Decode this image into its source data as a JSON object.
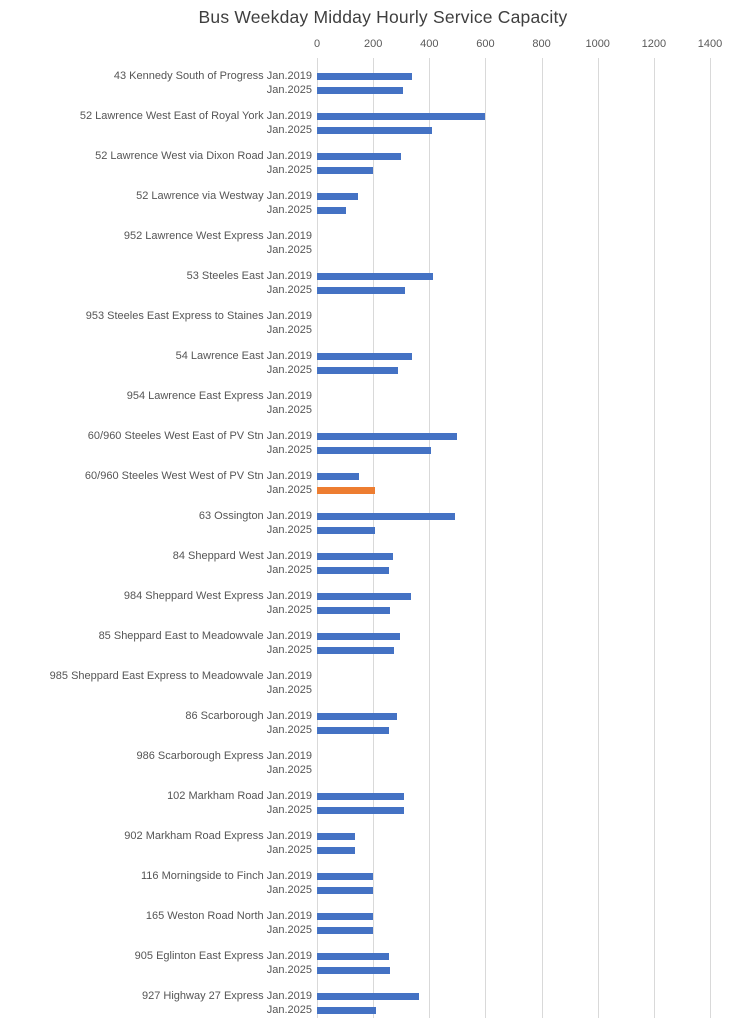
{
  "title": "Bus Weekday Midday Hourly Service Capacity",
  "colors": {
    "bar_default": "#4472C4",
    "bar_highlight": "#ED7D31",
    "gridline": "#D9D9D9",
    "axis_text": "#595959",
    "title_text": "#3F3F3F"
  },
  "chart_data": {
    "type": "bar",
    "orientation": "horizontal",
    "title": "Bus Weekday Midday Hourly Service Capacity",
    "xlabel": "",
    "ylabel": "",
    "xlim": [
      0,
      1400
    ],
    "x_ticks": [
      0,
      200,
      400,
      600,
      800,
      1000,
      1200,
      1400
    ],
    "axis_position": "top",
    "grid": true,
    "legend": "none",
    "categories": [
      "43 Kennedy South of Progress",
      "52 Lawrence West East of Royal York",
      "52 Lawrence West via Dixon Road",
      "52 Lawrence via Westway",
      "952 Lawrence West Express",
      "53 Steeles East",
      "953 Steeles East Express to Staines",
      "54 Lawrence East",
      "954 Lawrence East Express",
      "60/960 Steeles West East of PV Stn",
      "60/960 Steeles West West of PV Stn",
      "63 Ossington",
      "84 Sheppard West",
      "984 Sheppard West Express",
      "85 Sheppard East to Meadowvale",
      "985 Sheppard East Express to Meadowvale",
      "86 Scarborough",
      "986 Scarborough Express",
      "102 Markham Road",
      "902 Markham Road Express",
      "116 Morningside to Finch",
      "165 Weston Road North",
      "905 Eglinton East Express",
      "927 Highway 27 Express"
    ],
    "series": [
      {
        "name": "Jan.2019",
        "color": "#4472C4",
        "values": [
          340,
          600,
          300,
          145,
          0,
          415,
          0,
          340,
          0,
          500,
          150,
          490,
          270,
          335,
          295,
          0,
          285,
          0,
          310,
          135,
          200,
          200,
          255,
          365
        ]
      },
      {
        "name": "Jan.2025",
        "color": "#4472C4",
        "values": [
          305,
          410,
          200,
          105,
          0,
          315,
          0,
          290,
          0,
          405,
          205,
          205,
          255,
          260,
          275,
          0,
          255,
          0,
          310,
          135,
          200,
          200,
          260,
          210
        ]
      }
    ],
    "highlight": {
      "category": "60/960 Steeles West West of PV Stn",
      "series": "Jan.2025",
      "color": "#ED7D31"
    }
  }
}
